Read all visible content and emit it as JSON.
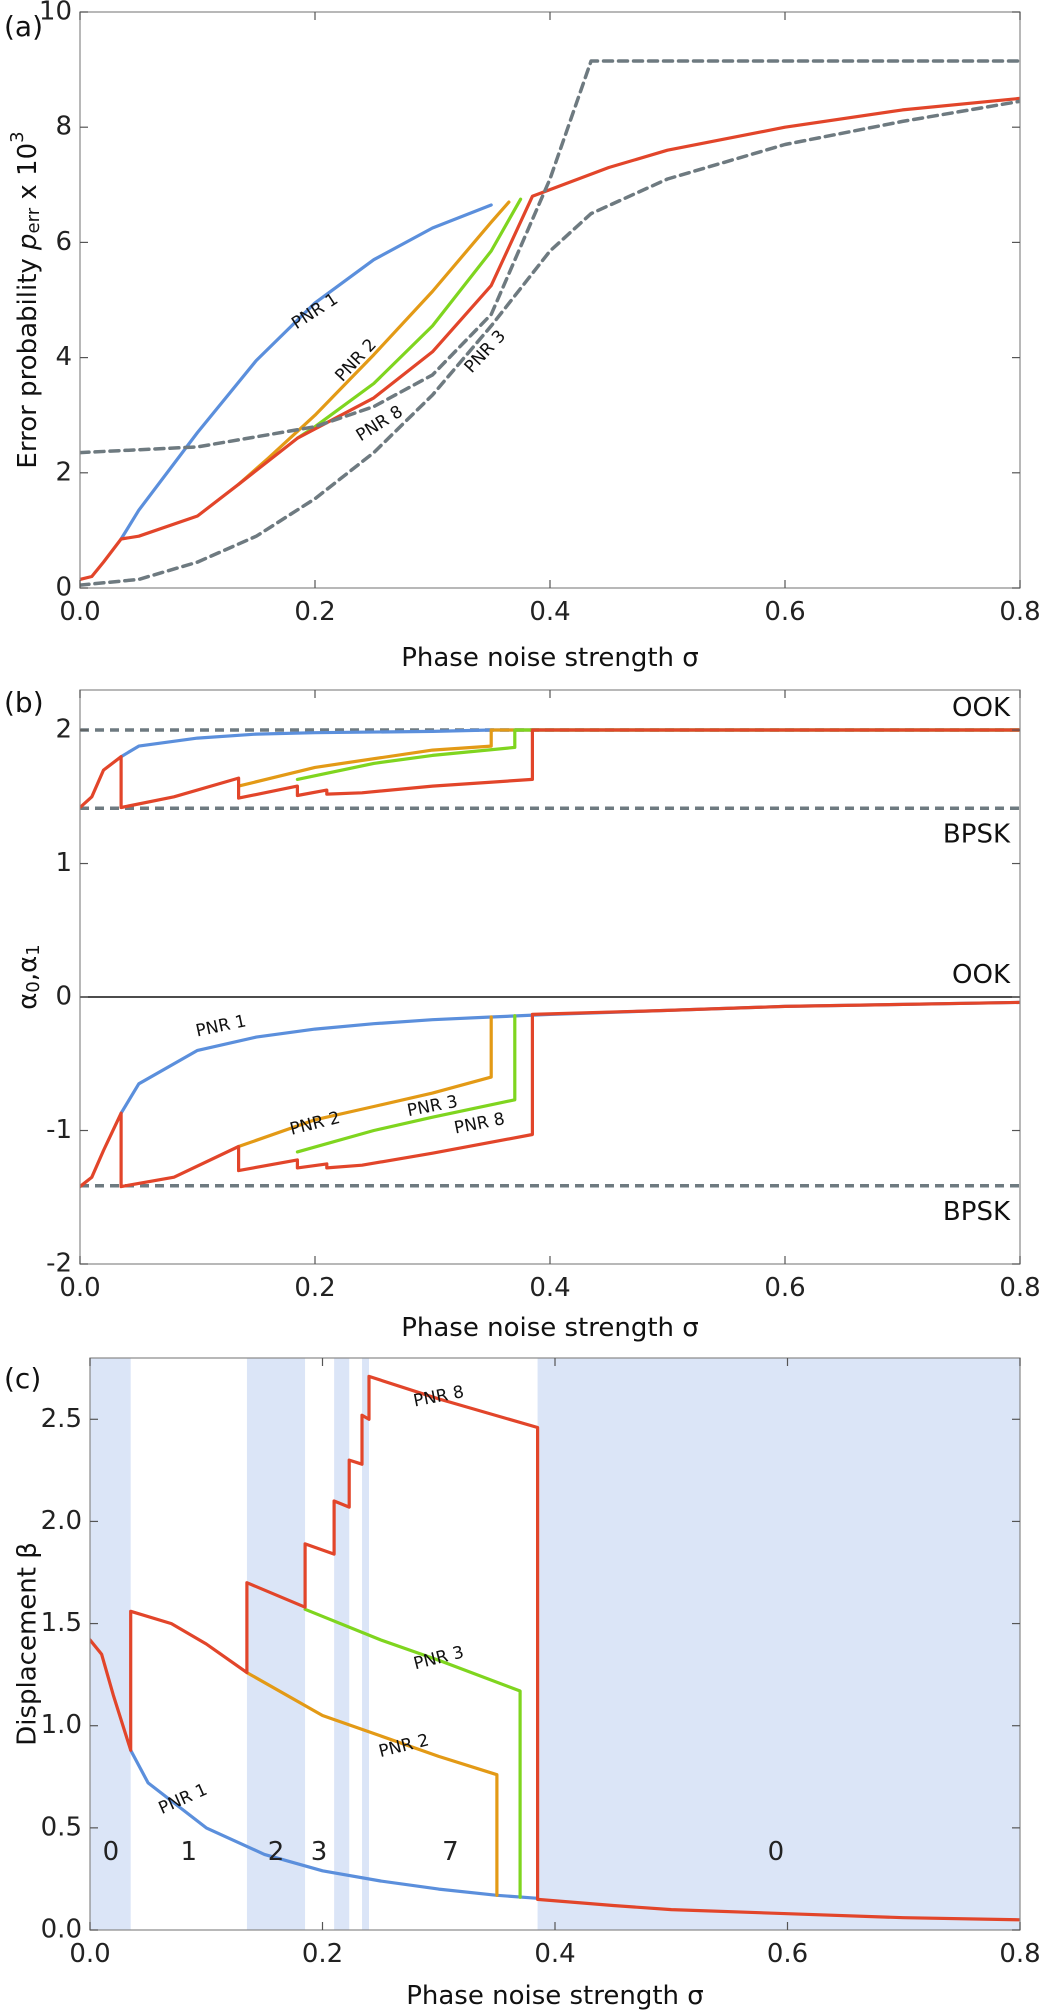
{
  "colors": {
    "PNR 1": "#5b8fdc",
    "PNR 2": "#e39a16",
    "PNR 3": "#7fd51f",
    "PNR 8": "#e2452a",
    "reference": "#6e7a80",
    "region": "#dbe5f7"
  },
  "chart_data": [
    {
      "type": "line",
      "panel": "(a)",
      "xlabel": "Phase noise strength σ",
      "ylabel": "Error probability p_err x 10^3",
      "ylabel_parts": {
        "main": "Error probability ",
        "italic": "p",
        "sub": "err",
        "mid": " x 10",
        "sup": "3"
      },
      "xlim": [
        0,
        0.8
      ],
      "ylim": [
        0,
        10
      ],
      "xticks": [
        0,
        0.2,
        0.4,
        0.6,
        0.8
      ],
      "xtick_labels": [
        "0.0",
        "0.2",
        "0.4",
        "0.6",
        "0.8"
      ],
      "yticks": [
        0,
        2,
        4,
        6,
        8,
        10
      ],
      "ytick_labels": [
        "0",
        "2",
        "4",
        "6",
        "8",
        "10"
      ],
      "grid": false,
      "series": [
        {
          "name": "PNR 1",
          "style": "solid",
          "x": [
            0.035,
            0.05,
            0.1,
            0.15,
            0.2,
            0.25,
            0.3,
            0.35
          ],
          "y": [
            0.85,
            1.35,
            2.7,
            3.95,
            4.95,
            5.7,
            6.25,
            6.65
          ]
        },
        {
          "name": "PNR 2",
          "style": "solid",
          "x": [
            0.135,
            0.16,
            0.2,
            0.25,
            0.3,
            0.35,
            0.365
          ],
          "y": [
            1.8,
            2.25,
            3.0,
            4.05,
            5.15,
            6.35,
            6.7
          ]
        },
        {
          "name": "PNR 3",
          "style": "solid",
          "x": [
            0.185,
            0.2,
            0.25,
            0.3,
            0.35,
            0.375
          ],
          "y": [
            2.6,
            2.8,
            3.55,
            4.55,
            5.85,
            6.75
          ]
        },
        {
          "name": "PNR 8",
          "style": "solid",
          "x": [
            0,
            0.01,
            0.02,
            0.035,
            0.05,
            0.1,
            0.135,
            0.185,
            0.25,
            0.3,
            0.35,
            0.385,
            0.45,
            0.5,
            0.6,
            0.7,
            0.8
          ],
          "y": [
            0.15,
            0.2,
            0.45,
            0.85,
            0.9,
            1.25,
            1.8,
            2.6,
            3.3,
            4.1,
            5.25,
            6.8,
            7.3,
            7.6,
            8.0,
            8.3,
            8.5
          ]
        },
        {
          "name": "",
          "style": "dashed",
          "x": [
            0,
            0.1,
            0.2,
            0.25,
            0.3,
            0.35,
            0.4,
            0.435,
            0.8
          ],
          "y": [
            2.35,
            2.45,
            2.8,
            3.15,
            3.7,
            4.75,
            7.1,
            9.15,
            9.15
          ]
        },
        {
          "name": "",
          "style": "dashed",
          "x": [
            0,
            0.05,
            0.1,
            0.15,
            0.2,
            0.25,
            0.3,
            0.35,
            0.4,
            0.435,
            0.5,
            0.6,
            0.7,
            0.8
          ],
          "y": [
            0.05,
            0.15,
            0.45,
            0.9,
            1.55,
            2.35,
            3.35,
            4.55,
            5.85,
            6.5,
            7.1,
            7.7,
            8.1,
            8.45
          ]
        }
      ],
      "labels": [
        {
          "text": "PNR 1",
          "x": 0.2,
          "y": 4.8,
          "angle": -33
        },
        {
          "text": "PNR 2",
          "x": 0.235,
          "y": 3.95,
          "angle": -47
        },
        {
          "text": "PNR 8",
          "x": 0.255,
          "y": 2.85,
          "angle": -32
        },
        {
          "text": "PNR 3",
          "x": 0.345,
          "y": 4.1,
          "angle": -47
        }
      ]
    },
    {
      "type": "line",
      "panel": "(b)",
      "xlabel": "Phase noise strength σ",
      "ylabel": "α0,α1",
      "ylabel_parts": {
        "a": "α",
        "sub0": "0",
        "comma": ",",
        "b": "α",
        "sub1": "1"
      },
      "xlim": [
        0,
        0.8
      ],
      "ylim": [
        -2,
        2.3
      ],
      "xticks": [
        0,
        0.2,
        0.4,
        0.6,
        0.8
      ],
      "xtick_labels": [
        "0.0",
        "0.2",
        "0.4",
        "0.6",
        "0.8"
      ],
      "yticks": [
        -2,
        -1,
        0,
        1,
        2
      ],
      "ytick_labels": [
        "-2",
        "-1",
        "0",
        "1",
        "2"
      ],
      "grid": false,
      "reference_lines": [
        {
          "y": 2,
          "style": "dashed",
          "text": "OOK"
        },
        {
          "y": 1.414,
          "style": "dashed",
          "text": "BPSK"
        },
        {
          "y": 0,
          "style": "solid",
          "text": "OOK"
        },
        {
          "y": -1.414,
          "style": "dashed",
          "text": "BPSK"
        }
      ],
      "series": [
        {
          "name": "PNR 1",
          "x": [
            0.035,
            0.05,
            0.1,
            0.15,
            0.2,
            0.3,
            0.35,
            0.8
          ],
          "y": [
            1.8,
            1.88,
            1.94,
            1.97,
            1.98,
            1.99,
            2.0,
            2.0
          ]
        },
        {
          "name": "PNR 2",
          "x": [
            0.135,
            0.2,
            0.3,
            0.35,
            0.35,
            0.4,
            0.8
          ],
          "y": [
            1.58,
            1.72,
            1.85,
            1.88,
            2.0,
            2.0,
            2.0
          ]
        },
        {
          "name": "PNR 3",
          "x": [
            0.185,
            0.25,
            0.3,
            0.37,
            0.37,
            0.4,
            0.8
          ],
          "y": [
            1.63,
            1.75,
            1.81,
            1.87,
            2.0,
            2.0,
            2.0
          ]
        },
        {
          "name": "PNR 8",
          "x": [
            0,
            0.01,
            0.02,
            0.035,
            0.035,
            0.08,
            0.135,
            0.135,
            0.185,
            0.185,
            0.21,
            0.21,
            0.24,
            0.3,
            0.385,
            0.385,
            0.5,
            0.8
          ],
          "y": [
            1.42,
            1.5,
            1.7,
            1.8,
            1.42,
            1.5,
            1.64,
            1.49,
            1.58,
            1.51,
            1.55,
            1.52,
            1.53,
            1.58,
            1.63,
            2.0,
            2.0,
            2.0
          ]
        },
        {
          "name": "PNR 1",
          "x": [
            0.035,
            0.05,
            0.1,
            0.15,
            0.2,
            0.25,
            0.3,
            0.35,
            0.35,
            0.4,
            0.5,
            0.6,
            0.8
          ],
          "y": [
            -0.87,
            -0.65,
            -0.4,
            -0.3,
            -0.24,
            -0.2,
            -0.17,
            -0.15,
            -0.15,
            -0.13,
            -0.1,
            -0.07,
            -0.04
          ]
        },
        {
          "name": "PNR 2",
          "x": [
            0.135,
            0.2,
            0.25,
            0.3,
            0.35,
            0.35
          ],
          "y": [
            -1.12,
            -0.92,
            -0.82,
            -0.72,
            -0.6,
            -0.15
          ]
        },
        {
          "name": "PNR 3",
          "x": [
            0.185,
            0.25,
            0.3,
            0.37,
            0.37
          ],
          "y": [
            -1.16,
            -1.0,
            -0.9,
            -0.77,
            -0.14
          ]
        },
        {
          "name": "PNR 8",
          "x": [
            0,
            0.01,
            0.02,
            0.035,
            0.035,
            0.08,
            0.135,
            0.135,
            0.185,
            0.185,
            0.21,
            0.21,
            0.24,
            0.3,
            0.385,
            0.385,
            0.5,
            0.6,
            0.8
          ],
          "y": [
            -1.42,
            -1.35,
            -1.15,
            -0.87,
            -1.42,
            -1.35,
            -1.12,
            -1.3,
            -1.22,
            -1.28,
            -1.25,
            -1.28,
            -1.26,
            -1.17,
            -1.03,
            -0.13,
            -0.1,
            -0.07,
            -0.04
          ]
        }
      ],
      "labels": [
        {
          "text": "PNR 1",
          "x": 0.12,
          "y": -0.22,
          "angle": -12
        },
        {
          "text": "PNR 2",
          "x": 0.2,
          "y": -0.95,
          "angle": -14
        },
        {
          "text": "PNR 3",
          "x": 0.3,
          "y": -0.82,
          "angle": -11
        },
        {
          "text": "PNR 8",
          "x": 0.34,
          "y": -0.95,
          "angle": -11
        }
      ]
    },
    {
      "type": "line",
      "panel": "(c)",
      "xlabel": "Phase noise strength σ",
      "ylabel": "Displacement β",
      "xlim": [
        0,
        0.8
      ],
      "ylim": [
        0,
        2.8
      ],
      "xticks": [
        0,
        0.2,
        0.4,
        0.6,
        0.8
      ],
      "xtick_labels": [
        "0.0",
        "0.2",
        "0.4",
        "0.6",
        "0.8"
      ],
      "yticks": [
        0,
        0.5,
        1.0,
        1.5,
        2.0,
        2.5
      ],
      "ytick_labels": [
        "0.0",
        "0.5",
        "1.0",
        "1.5",
        "2.0",
        "2.5"
      ],
      "grid": false,
      "shaded_regions": [
        {
          "x0": 0,
          "x1": 0.035
        },
        {
          "x0": 0.135,
          "x1": 0.185
        },
        {
          "x0": 0.21,
          "x1": 0.223
        },
        {
          "x0": 0.234,
          "x1": 0.24
        },
        {
          "x0": 0.385,
          "x1": 0.8
        }
      ],
      "region_labels": [
        {
          "text": "0",
          "x": 0.018,
          "y": 0.38
        },
        {
          "text": "1",
          "x": 0.085,
          "y": 0.38
        },
        {
          "text": "2",
          "x": 0.16,
          "y": 0.38
        },
        {
          "text": "3",
          "x": 0.197,
          "y": 0.38
        },
        {
          "text": "7",
          "x": 0.31,
          "y": 0.38
        },
        {
          "text": "0",
          "x": 0.59,
          "y": 0.38
        }
      ],
      "series": [
        {
          "name": "PNR 1",
          "x": [
            0.035,
            0.05,
            0.1,
            0.15,
            0.2,
            0.25,
            0.3,
            0.35,
            0.385
          ],
          "y": [
            0.88,
            0.72,
            0.5,
            0.37,
            0.29,
            0.24,
            0.2,
            0.17,
            0.155
          ]
        },
        {
          "name": "PNR 2",
          "x": [
            0.135,
            0.2,
            0.25,
            0.3,
            0.35,
            0.35
          ],
          "y": [
            1.26,
            1.05,
            0.95,
            0.85,
            0.76,
            0.17
          ]
        },
        {
          "name": "PNR 3",
          "x": [
            0.185,
            0.25,
            0.3,
            0.37,
            0.37
          ],
          "y": [
            1.57,
            1.42,
            1.32,
            1.17,
            0.16
          ]
        },
        {
          "name": "PNR 8",
          "x": [
            0,
            0.01,
            0.02,
            0.035,
            0.035,
            0.07,
            0.1,
            0.135,
            0.135,
            0.185,
            0.185,
            0.21,
            0.21,
            0.223,
            0.223,
            0.234,
            0.234,
            0.24,
            0.24,
            0.3,
            0.385,
            0.385,
            0.45,
            0.5,
            0.6,
            0.7,
            0.8
          ],
          "y": [
            1.42,
            1.35,
            1.15,
            0.88,
            1.56,
            1.5,
            1.4,
            1.26,
            1.7,
            1.58,
            1.89,
            1.84,
            2.1,
            2.07,
            2.3,
            2.28,
            2.52,
            2.5,
            2.71,
            2.6,
            2.46,
            0.15,
            0.12,
            0.1,
            0.08,
            0.06,
            0.05
          ]
        }
      ],
      "labels": [
        {
          "text": "PNR 8",
          "x": 0.3,
          "y": 2.61,
          "angle": -11
        },
        {
          "text": "PNR 3",
          "x": 0.3,
          "y": 1.33,
          "angle": -14
        },
        {
          "text": "PNR 2",
          "x": 0.27,
          "y": 0.9,
          "angle": -14
        },
        {
          "text": "PNR 1",
          "x": 0.08,
          "y": 0.64,
          "angle": -24
        }
      ]
    }
  ]
}
